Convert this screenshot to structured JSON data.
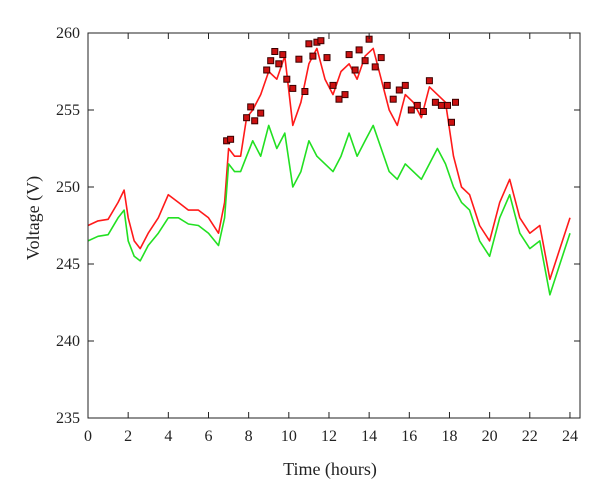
{
  "chart_data": {
    "type": "line",
    "title": "",
    "xlabel": "Time (hours)",
    "ylabel": "Voltage (V)",
    "xlim": [
      0,
      24.5
    ],
    "ylim": [
      235,
      260
    ],
    "xticks": [
      0,
      2,
      4,
      6,
      8,
      10,
      12,
      14,
      16,
      18,
      20,
      22,
      24
    ],
    "yticks": [
      235,
      240,
      245,
      250,
      255,
      260
    ],
    "grid": false,
    "legend": "none",
    "colors": {
      "red_series": "#ff1a1a",
      "green_series": "#22e022",
      "marker_fill": "#cc1111",
      "marker_edge": "#3a0000",
      "axis": "#222222"
    },
    "series": [
      {
        "color": "#ff1a1a",
        "x": [
          0,
          0.5,
          1,
          1.5,
          1.8,
          2,
          2.3,
          2.6,
          3,
          3.5,
          4,
          4.5,
          5,
          5.5,
          6,
          6.5,
          6.8,
          7,
          7.3,
          7.6,
          7.9,
          8.2,
          8.6,
          9,
          9.4,
          9.8,
          10.2,
          10.6,
          11,
          11.4,
          11.8,
          12.2,
          12.6,
          13,
          13.4,
          13.8,
          14.2,
          14.6,
          15,
          15.4,
          15.8,
          16.2,
          16.6,
          17,
          17.4,
          17.8,
          18.2,
          18.6,
          19,
          19.5,
          20,
          20.5,
          21,
          21.5,
          22,
          22.5,
          23,
          23.5,
          24
        ],
        "y": [
          247.5,
          247.8,
          247.9,
          249.0,
          249.8,
          248.0,
          246.5,
          246.0,
          247.0,
          248.0,
          249.5,
          249.0,
          248.5,
          248.5,
          248.0,
          247.0,
          249.0,
          252.5,
          252.0,
          252.0,
          254.5,
          255.0,
          256.0,
          257.5,
          257.0,
          258.5,
          254.0,
          255.5,
          258.0,
          259.0,
          257.0,
          256.0,
          257.5,
          258.0,
          257.0,
          258.5,
          259.0,
          257.0,
          255.0,
          254.0,
          256.0,
          255.5,
          254.5,
          256.5,
          256.0,
          255.5,
          252.0,
          250.0,
          249.5,
          247.5,
          246.5,
          249.0,
          250.5,
          248.0,
          247.0,
          247.5,
          244.0,
          246.0,
          248.0
        ]
      },
      {
        "color": "#22e022",
        "x": [
          0,
          0.5,
          1,
          1.5,
          1.8,
          2,
          2.3,
          2.6,
          3,
          3.5,
          4,
          4.5,
          5,
          5.5,
          6,
          6.5,
          6.8,
          7,
          7.3,
          7.6,
          7.9,
          8.2,
          8.6,
          9,
          9.4,
          9.8,
          10.2,
          10.6,
          11,
          11.4,
          11.8,
          12.2,
          12.6,
          13,
          13.4,
          13.8,
          14.2,
          14.6,
          15,
          15.4,
          15.8,
          16.2,
          16.6,
          17,
          17.4,
          17.8,
          18.2,
          18.6,
          19,
          19.5,
          20,
          20.5,
          21,
          21.5,
          22,
          22.5,
          23,
          23.5,
          24
        ],
        "y": [
          246.5,
          246.8,
          246.9,
          248.0,
          248.5,
          246.5,
          245.5,
          245.2,
          246.2,
          247.0,
          248.0,
          248.0,
          247.6,
          247.5,
          247.0,
          246.2,
          248.0,
          251.5,
          251.0,
          251.0,
          252.0,
          253.0,
          252.0,
          254.0,
          252.5,
          253.5,
          250.0,
          251.0,
          253.0,
          252.0,
          251.5,
          251.0,
          252.0,
          253.5,
          252.0,
          253.0,
          254.0,
          252.5,
          251.0,
          250.5,
          251.5,
          251.0,
          250.5,
          251.5,
          252.5,
          251.5,
          250.0,
          249.0,
          248.5,
          246.5,
          245.5,
          248.0,
          249.5,
          247.0,
          246.0,
          246.5,
          243.0,
          245.0,
          247.0
        ]
      }
    ],
    "markers": {
      "x": [
        6.9,
        7.1,
        7.9,
        8.1,
        8.3,
        8.6,
        8.9,
        9.1,
        9.3,
        9.5,
        9.7,
        9.9,
        10.2,
        10.5,
        10.8,
        11.0,
        11.2,
        11.4,
        11.6,
        11.9,
        12.2,
        12.5,
        12.8,
        13.0,
        13.3,
        13.5,
        13.8,
        14.0,
        14.3,
        14.6,
        14.9,
        15.2,
        15.5,
        15.8,
        16.1,
        16.4,
        16.7,
        17.0,
        17.3,
        17.6,
        17.9,
        18.1,
        18.3
      ],
      "y": [
        253.0,
        253.1,
        254.5,
        255.2,
        254.3,
        254.8,
        257.6,
        258.2,
        258.8,
        258.0,
        258.6,
        257.0,
        256.4,
        258.3,
        256.2,
        259.3,
        258.5,
        259.4,
        259.5,
        258.4,
        256.6,
        255.7,
        256.0,
        258.6,
        257.6,
        258.9,
        258.2,
        259.6,
        257.8,
        258.4,
        256.6,
        255.7,
        256.3,
        256.6,
        255.0,
        255.3,
        254.9,
        256.9,
        255.5,
        255.3,
        255.3,
        254.2,
        255.5
      ]
    }
  }
}
